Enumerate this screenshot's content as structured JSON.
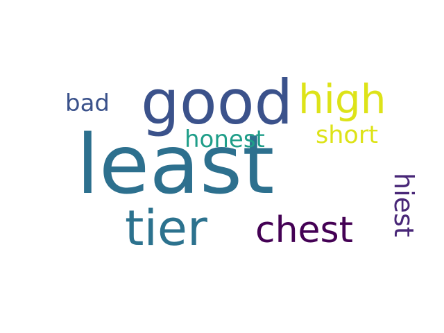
{
  "words": [
    {
      "text": "least",
      "color": "#2d708e"
    },
    {
      "text": "good",
      "color": "#3b528b"
    },
    {
      "text": "tier",
      "color": "#2c728e"
    },
    {
      "text": "chest",
      "color": "#440154"
    },
    {
      "text": "high",
      "color": "#dde318"
    },
    {
      "text": "honest",
      "color": "#1f9e89"
    },
    {
      "text": "short",
      "color": "#dde318"
    },
    {
      "text": "bad",
      "color": "#3b528b"
    },
    {
      "text": "hiest",
      "color": "#482677"
    }
  ]
}
